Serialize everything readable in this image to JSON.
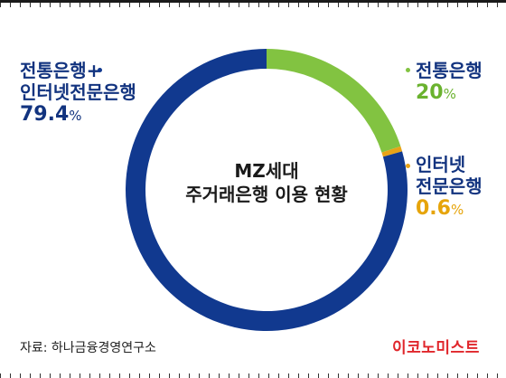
{
  "chart_data": {
    "type": "pie",
    "donut": true,
    "title_lines": [
      "MZ세대",
      "주거래은행 이용 현황"
    ],
    "slices": [
      {
        "name_lines": [
          "전통은행"
        ],
        "value": 20,
        "value_label": "20",
        "color": "#82c341"
      },
      {
        "name_lines": [
          "인터넷",
          "전문은행"
        ],
        "value": 0.6,
        "value_label": "0.6",
        "color": "#e8a317"
      },
      {
        "name_lines": [
          "전통은행+",
          "인터넷전문은행"
        ],
        "value": 79.4,
        "value_label": "79.4",
        "color": "#11398f"
      }
    ],
    "unit": "%"
  },
  "footer": {
    "source": "자료: 하나금융경영연구소",
    "brand": "이코노미스트"
  }
}
